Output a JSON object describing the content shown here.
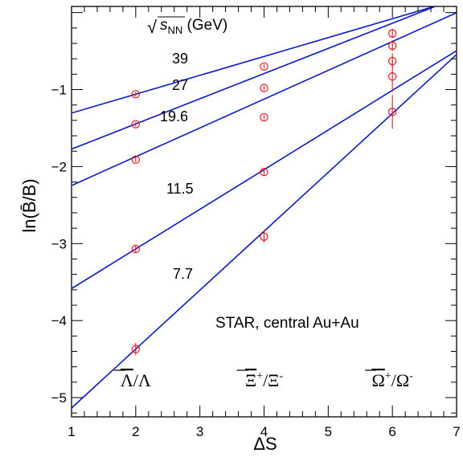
{
  "chart_data": {
    "type": "scatter",
    "xlabel": "ΔS",
    "ylabel": "ln(B̄/B)",
    "xlim": [
      1,
      7
    ],
    "ylim": [
      -5.25,
      0.08
    ],
    "x_ticks": [
      1,
      2,
      3,
      4,
      5,
      6,
      7
    ],
    "x_tick_labels": [
      "1",
      "2",
      "3",
      "4",
      "5",
      "6",
      "7"
    ],
    "y_ticks": [
      -5,
      -4,
      -3,
      -2,
      -1
    ],
    "y_tick_labels": [
      "−5",
      "−4",
      "−3",
      "−2",
      "−1"
    ],
    "legend_title": "√s_NN (GeV)",
    "legend_title_parts": {
      "sqrt": "√",
      "s": "s",
      "sub": "NN",
      "unit": "(GeV)"
    },
    "annotation": "STAR, central Au+Au",
    "particle_labels": [
      {
        "x": 2,
        "bar": "Λ",
        "rest": "/Λ"
      },
      {
        "x": 4,
        "bar": "Ξ",
        "sup1": "+",
        "rest": "/Ξ",
        "sup2": "-"
      },
      {
        "x": 6,
        "bar": "Ω",
        "sup1": "+",
        "rest": "/Ω",
        "sup2": "-"
      }
    ],
    "marker_color": "#e8181d",
    "line_color": "#0a1ac6",
    "series": [
      {
        "label": "39",
        "fit": {
          "intercept": -1.55,
          "slope": 0.245
        },
        "points": [
          {
            "x": 2,
            "y": -1.06,
            "err": 0.03
          },
          {
            "x": 4,
            "y": -0.7,
            "err": 0.03
          },
          {
            "x": 6,
            "y": -0.27,
            "err": 0.06
          }
        ]
      },
      {
        "label": "27",
        "fit": {
          "intercept": -2.1,
          "slope": 0.327
        },
        "points": [
          {
            "x": 2,
            "y": -1.45,
            "err": 0.03
          },
          {
            "x": 4,
            "y": -0.98,
            "err": 0.03
          },
          {
            "x": 6,
            "y": -0.43,
            "err": 0.07
          }
        ]
      },
      {
        "label": "19.6",
        "fit": {
          "intercept": -2.62,
          "slope": 0.374
        },
        "points": [
          {
            "x": 2,
            "y": -1.91,
            "err": 0.03
          },
          {
            "x": 4,
            "y": -1.36,
            "err": 0.03
          },
          {
            "x": 6,
            "y": -0.63,
            "err": 0.1
          }
        ]
      },
      {
        "label": "11.5",
        "fit": {
          "intercept": -4.1,
          "slope": 0.515
        },
        "points": [
          {
            "x": 2,
            "y": -3.07,
            "err": 0.04
          },
          {
            "x": 4,
            "y": -2.07,
            "err": 0.04
          },
          {
            "x": 6,
            "y": -0.83,
            "err": 0.2
          }
        ]
      },
      {
        "label": "7.7",
        "fit": {
          "intercept": -5.9,
          "slope": 0.765
        },
        "points": [
          {
            "x": 2,
            "y": -4.37,
            "err": 0.08
          },
          {
            "x": 4,
            "y": -2.91,
            "err": 0.08
          },
          {
            "x": 6,
            "y": -1.29,
            "err": 0.22
          }
        ]
      }
    ],
    "grid": false
  }
}
